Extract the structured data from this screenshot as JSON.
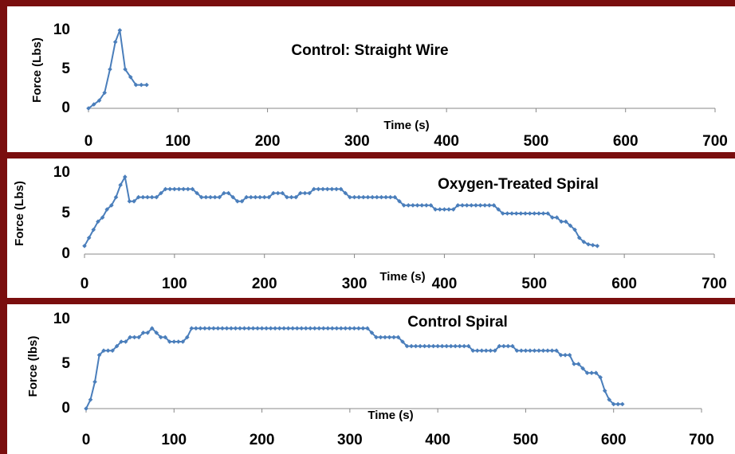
{
  "chart_data": [
    {
      "type": "line",
      "title": "Control: Straight Wire",
      "xlabel": "Time (s)",
      "ylabel": "Force (Lbs)",
      "color": "#4a7ebb",
      "x": [
        0,
        6,
        12,
        18,
        24,
        30,
        35,
        41,
        47,
        53,
        59,
        65
      ],
      "values": [
        0,
        0.5,
        1,
        2,
        5,
        8.5,
        10,
        5,
        4,
        3,
        3,
        3
      ],
      "xlim": [
        0,
        700
      ],
      "ylim": [
        0,
        10
      ],
      "xticks": [
        0,
        100,
        200,
        300,
        400,
        500,
        600,
        700
      ],
      "yticks": [
        0,
        5,
        10
      ]
    },
    {
      "type": "line",
      "title": "Oxygen-Treated Spiral",
      "xlabel": "Time (s)",
      "ylabel": "Force (Lbs)",
      "color": "#4a7ebb",
      "x": [
        0,
        5,
        10,
        15,
        20,
        25,
        30,
        35,
        40,
        45,
        50,
        55,
        60,
        65,
        70,
        75,
        80,
        85,
        90,
        95,
        100,
        105,
        110,
        115,
        120,
        125,
        130,
        135,
        140,
        145,
        150,
        155,
        160,
        165,
        170,
        175,
        180,
        185,
        190,
        195,
        200,
        205,
        210,
        215,
        220,
        225,
        230,
        235,
        240,
        245,
        250,
        255,
        260,
        265,
        270,
        275,
        280,
        285,
        290,
        295,
        300,
        305,
        310,
        315,
        320,
        325,
        330,
        335,
        340,
        345,
        350,
        355,
        360,
        365,
        370,
        375,
        380,
        385,
        390,
        395,
        400,
        405,
        410,
        415,
        420,
        425,
        430,
        435,
        440,
        445,
        450,
        455,
        460,
        465,
        470,
        475,
        480,
        485,
        490,
        495,
        500,
        505,
        510,
        515,
        520,
        525,
        530,
        535,
        540,
        545,
        550,
        555,
        560,
        565,
        570
      ],
      "values": [
        1,
        2,
        3,
        4,
        4.5,
        5.5,
        6,
        7,
        8.5,
        9.5,
        6.5,
        6.5,
        7,
        7,
        7,
        7,
        7,
        7.5,
        8,
        8,
        8,
        8,
        8,
        8,
        8,
        7.5,
        7,
        7,
        7,
        7,
        7,
        7.5,
        7.5,
        7,
        6.5,
        6.5,
        7,
        7,
        7,
        7,
        7,
        7,
        7.5,
        7.5,
        7.5,
        7,
        7,
        7,
        7.5,
        7.5,
        7.5,
        8,
        8,
        8,
        8,
        8,
        8,
        8,
        7.5,
        7,
        7,
        7,
        7,
        7,
        7,
        7,
        7,
        7,
        7,
        7,
        6.5,
        6,
        6,
        6,
        6,
        6,
        6,
        6,
        5.5,
        5.5,
        5.5,
        5.5,
        5.5,
        6,
        6,
        6,
        6,
        6,
        6,
        6,
        6,
        6,
        5.5,
        5,
        5,
        5,
        5,
        5,
        5,
        5,
        5,
        5,
        5,
        5,
        4.5,
        4.5,
        4,
        4,
        3.5,
        3,
        2,
        1.5,
        1.2,
        1.1,
        1
      ],
      "xlim": [
        0,
        700
      ],
      "ylim": [
        0,
        10
      ],
      "xticks": [
        0,
        100,
        200,
        300,
        400,
        500,
        600,
        700
      ],
      "yticks": [
        0,
        5,
        10
      ]
    },
    {
      "type": "line",
      "title": "Control Spiral",
      "xlabel": "Time (s)",
      "ylabel": "Force (lbs)",
      "color": "#4a7ebb",
      "x": [
        0,
        5,
        10,
        15,
        20,
        25,
        30,
        35,
        40,
        45,
        50,
        55,
        60,
        65,
        70,
        75,
        80,
        85,
        90,
        95,
        100,
        105,
        110,
        115,
        120,
        125,
        130,
        135,
        140,
        145,
        150,
        155,
        160,
        165,
        170,
        175,
        180,
        185,
        190,
        195,
        200,
        205,
        210,
        215,
        220,
        225,
        230,
        235,
        240,
        245,
        250,
        255,
        260,
        265,
        270,
        275,
        280,
        285,
        290,
        295,
        300,
        305,
        310,
        315,
        320,
        325,
        330,
        335,
        340,
        345,
        350,
        355,
        360,
        365,
        370,
        375,
        380,
        385,
        390,
        395,
        400,
        405,
        410,
        415,
        420,
        425,
        430,
        435,
        440,
        445,
        450,
        455,
        460,
        465,
        470,
        475,
        480,
        485,
        490,
        495,
        500,
        505,
        510,
        515,
        520,
        525,
        530,
        535,
        540,
        545,
        550,
        555,
        560,
        565,
        570,
        575,
        580,
        585,
        590,
        595,
        600,
        605,
        610
      ],
      "values": [
        0,
        1,
        3,
        6,
        6.5,
        6.5,
        6.5,
        7,
        7.5,
        7.5,
        8,
        8,
        8,
        8.5,
        8.5,
        9,
        8.5,
        8,
        8,
        7.5,
        7.5,
        7.5,
        7.5,
        8,
        9,
        9,
        9,
        9,
        9,
        9,
        9,
        9,
        9,
        9,
        9,
        9,
        9,
        9,
        9,
        9,
        9,
        9,
        9,
        9,
        9,
        9,
        9,
        9,
        9,
        9,
        9,
        9,
        9,
        9,
        9,
        9,
        9,
        9,
        9,
        9,
        9,
        9,
        9,
        9,
        9,
        8.5,
        8,
        8,
        8,
        8,
        8,
        8,
        7.5,
        7,
        7,
        7,
        7,
        7,
        7,
        7,
        7,
        7,
        7,
        7,
        7,
        7,
        7,
        7,
        6.5,
        6.5,
        6.5,
        6.5,
        6.5,
        6.5,
        7,
        7,
        7,
        7,
        6.5,
        6.5,
        6.5,
        6.5,
        6.5,
        6.5,
        6.5,
        6.5,
        6.5,
        6.5,
        6,
        6,
        6,
        5,
        5,
        4.5,
        4,
        4,
        4,
        3.5,
        2,
        1,
        0.5,
        0.5,
        0.5
      ],
      "xlim": [
        0,
        700
      ],
      "ylim": [
        0,
        10
      ],
      "xticks": [
        0,
        100,
        200,
        300,
        400,
        500,
        600,
        700
      ],
      "yticks": [
        0,
        5,
        10
      ]
    }
  ]
}
